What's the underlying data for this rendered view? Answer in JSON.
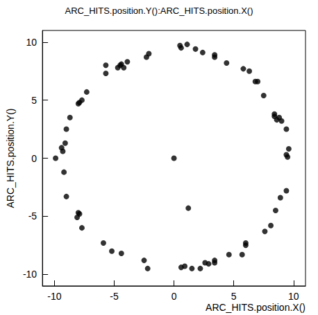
{
  "chart_data": {
    "type": "scatter",
    "title": "ARC_HITS.position.Y():ARC_HITS.position.X()",
    "x_label": "ARC_HITS.position.X()",
    "y_label": "ARC_HITS.position.Y()",
    "x": [
      0.5,
      0.6,
      1.1,
      1.8,
      2.4,
      3.4,
      3.4,
      4.4,
      5.8,
      6.3,
      6.8,
      7.0,
      7.5,
      8.4,
      8.4,
      8.6,
      8.8,
      9.0,
      9.4,
      9.6,
      9.4,
      9.5,
      9.4,
      8.9,
      8.5,
      8.1,
      7.6,
      6.0,
      6.0,
      5.7,
      4.6,
      3.4,
      3.4,
      2.9,
      2.6,
      2.2,
      1.5,
      0.9,
      0.6,
      1.2,
      0.0,
      -2.2,
      -2.5,
      -4.4,
      -5.2,
      -5.9,
      -7.7,
      -7.9,
      -8.0,
      -8.1,
      -9.0,
      -9.2,
      -9.9,
      -9.3,
      -9.4,
      -9.1,
      -9.0,
      -8.7,
      -8.0,
      -7.9,
      -7.7,
      -7.3,
      -5.7,
      -5.7,
      -4.7,
      -4.5,
      -4.4,
      -4.2,
      -3.9,
      -2.3,
      -2.1
    ],
    "values": [
      9.7,
      9.5,
      9.8,
      9.4,
      9.1,
      8.9,
      8.7,
      8.2,
      7.7,
      7.5,
      6.6,
      6.6,
      5.4,
      3.8,
      3.6,
      3.3,
      3.5,
      3.2,
      2.5,
      0.8,
      0.3,
      0.1,
      -2.8,
      -3.4,
      -4.5,
      -5.8,
      -6.3,
      -7.3,
      -7.5,
      -8.3,
      -8.3,
      -8.8,
      -9.0,
      -9.1,
      -9.0,
      -9.5,
      -9.5,
      -9.3,
      -9.4,
      -4.3,
      0.0,
      -9.5,
      -8.8,
      -8.2,
      -8.0,
      -7.3,
      -6.0,
      -4.8,
      -4.7,
      -5.1,
      -3.3,
      -1.2,
      0.0,
      0.6,
      0.9,
      1.3,
      2.5,
      3.5,
      4.7,
      4.8,
      5.0,
      5.7,
      7.3,
      8.0,
      7.8,
      8.0,
      8.1,
      7.8,
      8.3,
      8.7,
      9.0
    ],
    "color": "#000000",
    "marker": "circle",
    "xlim": [
      -11,
      11
    ],
    "ylim": [
      -11,
      11
    ],
    "xticks": [
      -10,
      -5,
      0,
      5,
      10
    ],
    "yticks": [
      -10,
      -5,
      0,
      5,
      10
    ],
    "grid": false
  }
}
